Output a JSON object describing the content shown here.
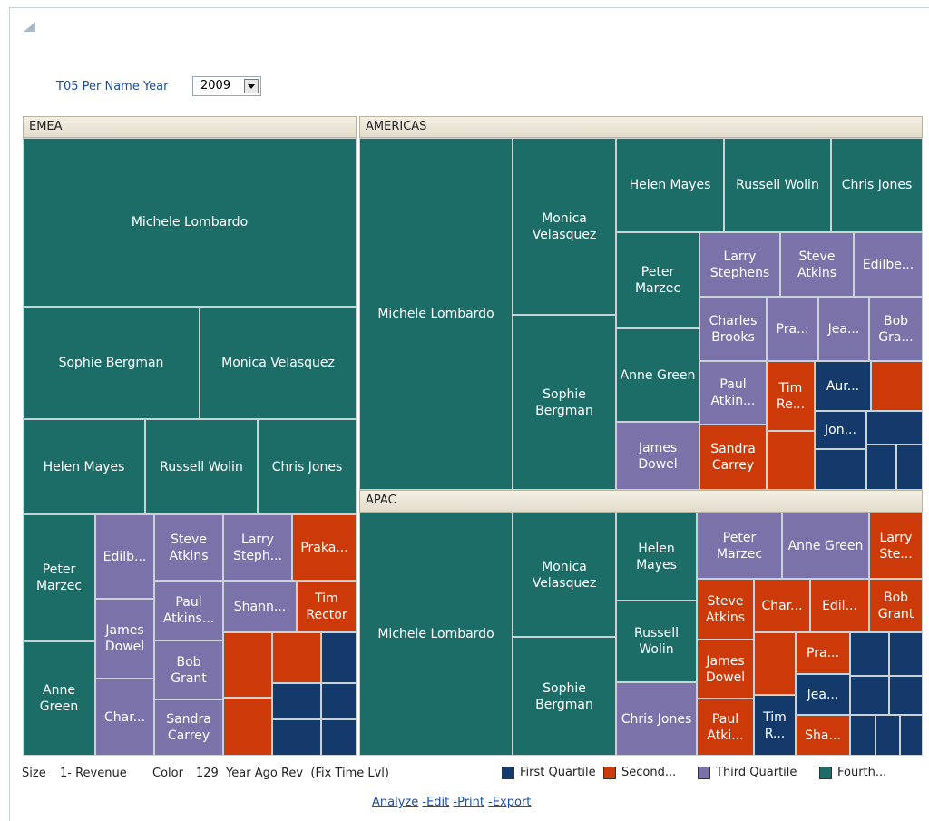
{
  "prompt": {
    "label": "T05 Per Name Year",
    "value": "2009"
  },
  "regions": [
    {
      "name": "EMEA",
      "tiles": [
        "Michele Lombardo",
        "Sophie Bergman",
        "Monica Velasquez",
        "Helen Mayes",
        "Russell Wolin",
        "Chris Jones",
        "Peter Marzec",
        "Anne Green",
        "Edilb...",
        "James Dowel",
        "Char...",
        "Steve Atkins",
        "Paul Atkins...",
        "Bob Grant",
        "Sandra Carrey",
        "Larry Steph...",
        "Praka...",
        "Shann...",
        "Tim Rector"
      ]
    },
    {
      "name": "AMERICAS",
      "tiles": [
        "Michele Lombardo",
        "Monica Velasquez",
        "Sophie Bergman",
        "Helen Mayes",
        "Russell Wolin",
        "Chris Jones",
        "Peter Marzec",
        "Anne Green",
        "James Dowel",
        "Larry Stephens",
        "Steve Atkins",
        "Edilbe...",
        "Charles Brooks",
        "Pra...",
        "Jea...",
        "Bob Gra...",
        "Paul Atkin...",
        "Tim Re...",
        "Aur...",
        "Sandra Carrey",
        "Jon..."
      ]
    },
    {
      "name": "APAC",
      "tiles": [
        "Michele Lombardo",
        "Monica Velasquez",
        "Sophie Bergman",
        "Helen Mayes",
        "Russell Wolin",
        "Chris Jones",
        "Peter Marzec",
        "Anne Green",
        "Larry Ste...",
        "Steve Atkins",
        "Char...",
        "Edil...",
        "Bob Grant",
        "James Dowel",
        "Pra...",
        "Paul Atki...",
        "Tim R...",
        "Jea...",
        "Sha..."
      ]
    }
  ],
  "footer": {
    "size_label": "Size",
    "size_value": "1- Revenue",
    "color_label": "Color",
    "color_value": "129  Year Ago Rev  (Fix Time Lvl)",
    "legend": [
      "First Quartile",
      "Second...",
      "Third Quartile",
      "Fourth..."
    ]
  },
  "links": [
    "Analyze",
    "-Edit",
    "-Print",
    "-Export"
  ]
}
